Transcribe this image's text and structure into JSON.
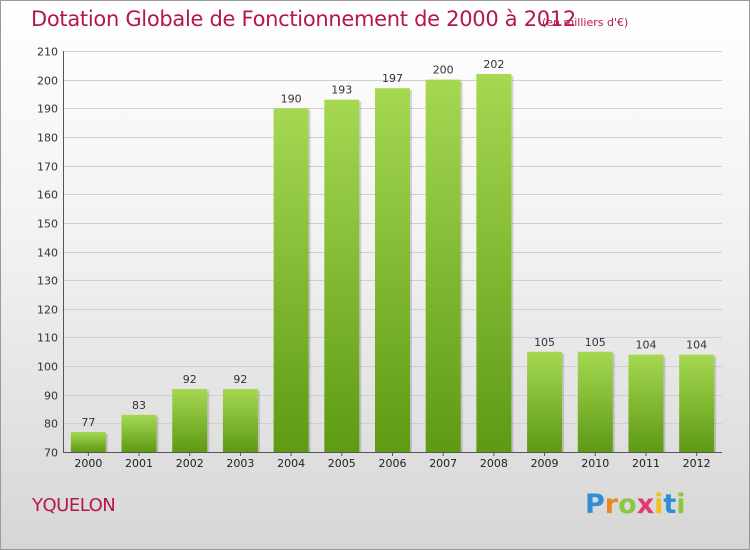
{
  "title": "Dotation Globale de Fonctionnement de 2000 à 2012",
  "unit_note": "(en milliers d'€)",
  "commune": "YQUELON",
  "logo": {
    "letters": [
      "P",
      "r",
      "o",
      "x",
      "i",
      "t",
      "i"
    ],
    "colors": [
      "#2f8fd6",
      "#e88a1a",
      "#8cc63f",
      "#e03a6e",
      "#f2c21b",
      "#2f8fd6",
      "#8cc63f"
    ]
  },
  "colors": {
    "bar_light": "#a6d852",
    "bar_dark": "#5e9a14",
    "title": "#b5174a",
    "grid": "#cfcfcf"
  },
  "chart_data": {
    "type": "bar",
    "categories": [
      "2000",
      "2001",
      "2002",
      "2003",
      "2004",
      "2005",
      "2006",
      "2007",
      "2008",
      "2009",
      "2010",
      "2011",
      "2012"
    ],
    "values": [
      77,
      83,
      92,
      92,
      190,
      193,
      197,
      200,
      202,
      105,
      105,
      104,
      104
    ],
    "data_labels": [
      "77",
      "83",
      "92",
      "92",
      "190",
      "193",
      "197",
      "200",
      "202",
      "105",
      "105",
      "104",
      "104"
    ],
    "yticks": [
      70,
      80,
      90,
      100,
      110,
      120,
      130,
      140,
      150,
      160,
      170,
      180,
      190,
      200,
      210
    ],
    "ylim": [
      70,
      210
    ],
    "grid": true,
    "xlabel": "",
    "ylabel": ""
  }
}
